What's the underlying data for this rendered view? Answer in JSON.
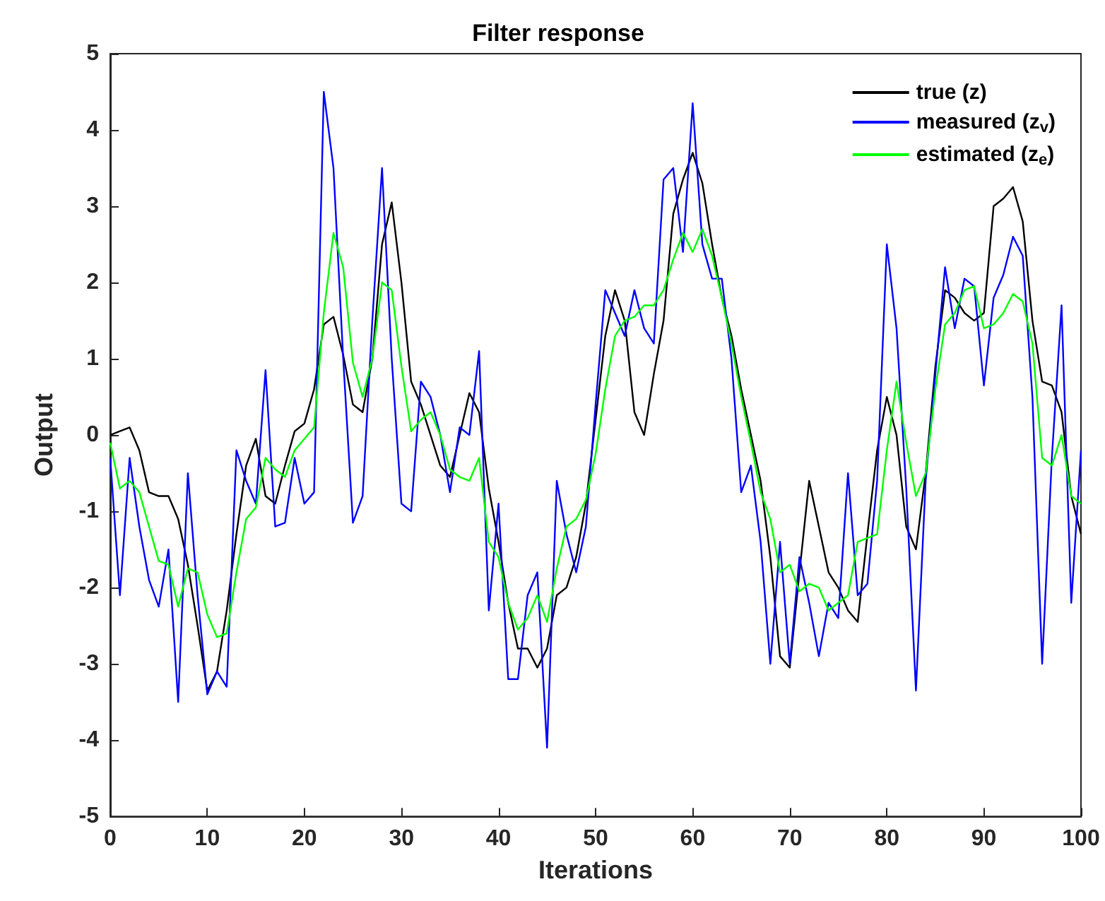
{
  "chart_data": {
    "type": "line",
    "title": "Filter response",
    "xlabel": "Iterations",
    "ylabel": "Output",
    "x": [
      0,
      1,
      2,
      3,
      4,
      5,
      6,
      7,
      8,
      9,
      10,
      11,
      12,
      13,
      14,
      15,
      16,
      17,
      18,
      19,
      20,
      21,
      22,
      23,
      24,
      25,
      26,
      27,
      28,
      29,
      30,
      31,
      32,
      33,
      34,
      35,
      36,
      37,
      38,
      39,
      40,
      41,
      42,
      43,
      44,
      45,
      46,
      47,
      48,
      49,
      50,
      51,
      52,
      53,
      54,
      55,
      56,
      57,
      58,
      59,
      60,
      61,
      62,
      63,
      64,
      65,
      66,
      67,
      68,
      69,
      70,
      71,
      72,
      73,
      74,
      75,
      76,
      77,
      78,
      79,
      80,
      81,
      82,
      83,
      84,
      85,
      86,
      87,
      88,
      89,
      90,
      91,
      92,
      93,
      94,
      95,
      96,
      97,
      98,
      99,
      100
    ],
    "series": [
      {
        "name": "true (z)",
        "color": "#000000",
        "values": [
          0,
          0.05,
          0.1,
          -0.2,
          -0.75,
          -0.8,
          -0.8,
          -1.1,
          -1.7,
          -2.5,
          -3.35,
          -3.1,
          -2.3,
          -1.3,
          -0.4,
          -0.05,
          -0.8,
          -0.9,
          -0.4,
          0.05,
          0.15,
          0.6,
          1.45,
          1.55,
          1.05,
          0.4,
          0.3,
          1.0,
          2.5,
          3.05,
          2.0,
          0.7,
          0.4,
          0.0,
          -0.4,
          -0.55,
          0.0,
          0.55,
          0.3,
          -0.7,
          -1.4,
          -2.2,
          -2.8,
          -2.8,
          -3.05,
          -2.8,
          -2.1,
          -2.0,
          -1.6,
          -0.9,
          0.2,
          1.3,
          1.9,
          1.5,
          0.3,
          0.0,
          0.8,
          1.5,
          2.9,
          3.35,
          3.7,
          3.3,
          2.5,
          1.8,
          1.3,
          0.6,
          0.0,
          -0.6,
          -1.6,
          -2.9,
          -3.05,
          -1.8,
          -0.6,
          -1.2,
          -1.8,
          -2.0,
          -2.3,
          -2.45,
          -1.3,
          -0.2,
          0.5,
          0.0,
          -1.2,
          -1.5,
          -0.5,
          0.9,
          1.9,
          1.8,
          1.6,
          1.5,
          1.6,
          3.0,
          3.1,
          3.25,
          2.8,
          1.5,
          0.7,
          0.65,
          0.3,
          -0.8,
          -1.3
        ]
      },
      {
        "name": "measured (z$_{v}$)",
        "color": "#0000ff",
        "values": [
          -0.3,
          -2.1,
          -0.3,
          -1.2,
          -1.9,
          -2.25,
          -1.5,
          -3.5,
          -0.5,
          -2.1,
          -3.4,
          -3.1,
          -3.3,
          -0.2,
          -0.6,
          -0.9,
          0.85,
          -1.2,
          -1.15,
          -0.3,
          -0.9,
          -0.75,
          4.5,
          3.5,
          1.0,
          -1.15,
          -0.8,
          1.5,
          3.5,
          1.0,
          -0.9,
          -1.0,
          0.7,
          0.5,
          0.0,
          -0.75,
          0.1,
          0.0,
          1.1,
          -2.3,
          -0.9,
          -3.2,
          -3.2,
          -2.1,
          -1.8,
          -4.1,
          -0.6,
          -1.3,
          -1.8,
          -1.2,
          0.4,
          1.9,
          1.6,
          1.3,
          1.9,
          1.4,
          1.2,
          3.35,
          3.5,
          2.4,
          4.35,
          2.5,
          2.05,
          2.05,
          1.0,
          -0.75,
          -0.4,
          -1.4,
          -3.0,
          -1.4,
          -3.0,
          -1.6,
          -2.2,
          -2.9,
          -2.2,
          -2.4,
          -0.5,
          -2.1,
          -1.95,
          -0.6,
          2.5,
          1.4,
          -0.7,
          -3.35,
          -0.6,
          0.8,
          2.2,
          1.4,
          2.05,
          1.95,
          0.65,
          1.8,
          2.1,
          2.6,
          2.35,
          0.5,
          -3.0,
          -0.3,
          1.7,
          -2.2,
          -0.2
        ]
      },
      {
        "name": "estimated (z$_{e}$)",
        "color": "#00ff00",
        "values": [
          -0.1,
          -0.7,
          -0.6,
          -0.75,
          -1.2,
          -1.65,
          -1.7,
          -2.25,
          -1.75,
          -1.8,
          -2.35,
          -2.65,
          -2.6,
          -1.8,
          -1.1,
          -0.95,
          -0.3,
          -0.45,
          -0.55,
          -0.2,
          -0.05,
          0.1,
          1.6,
          2.65,
          2.2,
          0.95,
          0.5,
          1.0,
          2.0,
          1.9,
          0.9,
          0.05,
          0.2,
          0.3,
          0.0,
          -0.45,
          -0.55,
          -0.6,
          -0.3,
          -1.4,
          -1.6,
          -2.2,
          -2.55,
          -2.4,
          -2.1,
          -2.45,
          -1.75,
          -1.2,
          -1.1,
          -0.85,
          -0.25,
          0.6,
          1.3,
          1.5,
          1.55,
          1.7,
          1.7,
          1.9,
          2.3,
          2.65,
          2.4,
          2.7,
          2.35,
          1.8,
          1.2,
          0.5,
          -0.1,
          -0.75,
          -1.1,
          -1.8,
          -1.7,
          -2.05,
          -1.95,
          -2.0,
          -2.3,
          -2.2,
          -2.1,
          -1.4,
          -1.35,
          -1.3,
          -0.2,
          0.7,
          -0.1,
          -0.8,
          -0.5,
          0.6,
          1.45,
          1.6,
          1.9,
          1.95,
          1.4,
          1.45,
          1.6,
          1.85,
          1.75,
          1.2,
          -0.3,
          -0.4,
          0.0,
          -0.8,
          -0.9
        ]
      }
    ],
    "xlim": [
      0,
      100
    ],
    "xticks": [
      0,
      10,
      20,
      30,
      40,
      50,
      60,
      70,
      80,
      90,
      100
    ],
    "ylim": [
      -5,
      5
    ],
    "yticks": [
      -5,
      -4,
      -3,
      -2,
      -1,
      0,
      1,
      2,
      3,
      4,
      5
    ],
    "legend": "top right",
    "marker": "none",
    "line_style": "solid",
    "grid": false
  }
}
